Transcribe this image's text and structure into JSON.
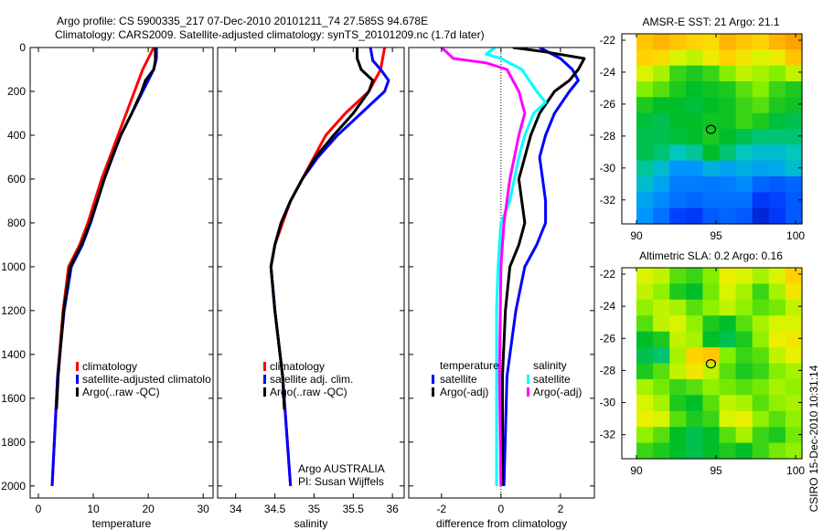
{
  "title": {
    "line1": "Argo profile: CS 5900335_217 07-Dec-2010 20101211_74 27.585S 94.678E",
    "line2": "Climatology: CARS2009. Satellite-adjusted climatology: synTS_20101209.nc (1.7d later)"
  },
  "footer": "CSIRO 15-Dec-2010 10:31:14",
  "colors": {
    "red": "#ff0000",
    "blue": "#0000ff",
    "black": "#000000",
    "cyan": "#00ffff",
    "magenta": "#ff00ff"
  },
  "chart_data": [
    {
      "type": "line",
      "xlabel": "temperature",
      "ylabel": "",
      "xlim": [
        -1.5,
        31.8
      ],
      "ylim": [
        0,
        2055
      ],
      "y_reversed": true,
      "xticks": [
        0,
        10,
        20,
        30
      ],
      "yticks": [
        0,
        200,
        400,
        600,
        800,
        1000,
        1200,
        1400,
        1600,
        1800,
        2000
      ],
      "legend": [
        "climatology",
        "satellite-adjusted climatolo",
        "Argo(..raw -QC)"
      ],
      "series": [
        {
          "name": "climatology",
          "color": "#ff0000",
          "depth": [
            0,
            50,
            100,
            200,
            300,
            400,
            500,
            600,
            800,
            900,
            1000,
            1200,
            1500,
            2000
          ],
          "values": [
            21,
            20,
            19,
            17.5,
            16,
            14.5,
            13,
            11.5,
            9,
            7.5,
            5.5,
            4.5,
            3.5,
            2.5
          ]
        },
        {
          "name": "satellite-adjusted climatology",
          "color": "#0000ff",
          "depth": [
            0,
            50,
            100,
            200,
            300,
            400,
            500,
            600,
            800,
            900,
            1000,
            1200,
            1500,
            2000
          ],
          "values": [
            21.5,
            21.5,
            21,
            19,
            17,
            15,
            13.5,
            12,
            9.5,
            8,
            6,
            4.7,
            3.5,
            2.5
          ]
        },
        {
          "name": "Argo(..raw -QC)",
          "color": "#000000",
          "depth": [
            0,
            60,
            100,
            150,
            200,
            300,
            400,
            500,
            600,
            800,
            900,
            1000,
            1200,
            1500,
            1650
          ],
          "values": [
            21.3,
            21.3,
            21,
            19.5,
            18.8,
            17,
            15,
            13.4,
            12,
            9.4,
            7.8,
            5.8,
            4.6,
            3.6,
            3.3
          ]
        }
      ]
    },
    {
      "type": "line",
      "xlabel": "salinity",
      "xlim": [
        33.77,
        36.15
      ],
      "ylim": [
        0,
        2055
      ],
      "y_reversed": true,
      "xticks": [
        34,
        34.5,
        35,
        35.5,
        36
      ],
      "legend": [
        "climatology",
        "satellite adj. clim.",
        "Argo(..raw -QC)"
      ],
      "annotations": [
        "Argo AUSTRALIA",
        "PI: Susan Wijffels"
      ],
      "series": [
        {
          "name": "climatology",
          "color": "#ff0000",
          "depth": [
            0,
            100,
            200,
            300,
            400,
            500,
            600,
            700,
            800,
            900,
            1000,
            1200,
            1500,
            2000
          ],
          "values": [
            35.9,
            35.85,
            35.7,
            35.4,
            35.15,
            35.0,
            34.85,
            34.7,
            34.6,
            34.5,
            34.45,
            34.5,
            34.6,
            34.7
          ]
        },
        {
          "name": "satellite adj. clim.",
          "color": "#0000ff",
          "depth": [
            0,
            60,
            100,
            150,
            200,
            300,
            400,
            500,
            600,
            700,
            800,
            900,
            1000,
            1200,
            1500,
            2000
          ],
          "values": [
            35.72,
            35.75,
            35.85,
            35.95,
            35.9,
            35.6,
            35.3,
            35.05,
            34.85,
            34.7,
            34.58,
            34.5,
            34.45,
            34.5,
            34.6,
            34.7
          ]
        },
        {
          "name": "Argo(..raw -QC)",
          "color": "#000000",
          "depth": [
            0,
            50,
            100,
            150,
            200,
            300,
            400,
            500,
            600,
            700,
            800,
            900,
            1000,
            1200,
            1500,
            1650
          ],
          "values": [
            35.55,
            35.55,
            35.6,
            35.75,
            35.7,
            35.5,
            35.25,
            35.02,
            34.85,
            34.7,
            34.58,
            34.5,
            34.45,
            34.5,
            34.6,
            34.62
          ]
        }
      ]
    },
    {
      "type": "line",
      "xlabel": "difference from climatology",
      "xlim": [
        -3.1,
        3.14
      ],
      "ylim": [
        0,
        2055
      ],
      "y_reversed": true,
      "xticks": [
        -2,
        0,
        2
      ],
      "zero_line": true,
      "legend_groups": [
        {
          "title": "temperature",
          "entries": [
            "satellite",
            "Argo(-adj)"
          ]
        },
        {
          "title": "salinity",
          "entries": [
            "satellite",
            "Argo(-adj)"
          ]
        }
      ],
      "series": [
        {
          "name": "temperature satellite",
          "color": "#0000ff",
          "depth": [
            0,
            50,
            100,
            150,
            200,
            300,
            400,
            500,
            600,
            700,
            800,
            900,
            1000,
            1200,
            1500,
            2000
          ],
          "values": [
            1.3,
            2.0,
            2.4,
            2.6,
            2.3,
            1.8,
            1.5,
            1.3,
            1.4,
            1.5,
            1.5,
            1.2,
            0.8,
            0.5,
            0.2,
            0.1
          ]
        },
        {
          "name": "temperature Argo(-adj)",
          "color": "#000000",
          "depth": [
            0,
            20,
            50,
            100,
            150,
            200,
            300,
            400,
            500,
            600,
            700,
            800,
            900,
            1000,
            1200,
            1500,
            2000
          ],
          "values": [
            0.4,
            1.5,
            2.8,
            2.6,
            2.3,
            1.8,
            1.3,
            1.0,
            0.8,
            0.6,
            0.7,
            0.8,
            0.6,
            0.3,
            0.15,
            0.05,
            0.05
          ]
        },
        {
          "name": "salinity satellite",
          "color": "#00ffff",
          "depth": [
            0,
            30,
            50,
            100,
            200,
            250,
            300,
            400,
            500,
            700,
            800,
            1000,
            1200,
            2000
          ],
          "values": [
            -0.2,
            -0.5,
            0,
            0.7,
            1.2,
            1.5,
            1.1,
            0.8,
            0.6,
            0.3,
            0.0,
            -0.1,
            -0.15,
            -0.15
          ]
        },
        {
          "name": "salinity Argo(-adj)",
          "color": "#ff00ff",
          "depth": [
            0,
            50,
            70,
            100,
            200,
            300,
            400,
            600,
            800,
            1000,
            1500,
            2000
          ],
          "values": [
            -2,
            -1.6,
            -0.5,
            0.2,
            0.6,
            0.8,
            0.6,
            0.3,
            0.1,
            0.0,
            -0.05,
            0.0
          ]
        }
      ]
    },
    {
      "type": "heatmap",
      "title": "AMSR-E SST: 21 Argo: 21.1",
      "xlim": [
        90,
        100.4
      ],
      "ylim": [
        -33.5,
        -21.6
      ],
      "xticks": [
        90,
        95,
        100
      ],
      "yticks": [
        -22,
        -24,
        -26,
        -28,
        -30,
        -32
      ],
      "marker": {
        "lon": 94.678,
        "lat": -27.585
      },
      "grid": [
        [
          0.72,
          0.75,
          0.72,
          0.7,
          0.68,
          0.75,
          0.72,
          0.7,
          0.75,
          0.78
        ],
        [
          0.7,
          0.68,
          0.62,
          0.6,
          0.65,
          0.7,
          0.66,
          0.62,
          0.65,
          0.72
        ],
        [
          0.62,
          0.58,
          0.5,
          0.48,
          0.5,
          0.55,
          0.6,
          0.58,
          0.55,
          0.6
        ],
        [
          0.55,
          0.52,
          0.48,
          0.46,
          0.47,
          0.48,
          0.52,
          0.55,
          0.5,
          0.48
        ],
        [
          0.48,
          0.46,
          0.46,
          0.45,
          0.46,
          0.47,
          0.5,
          0.52,
          0.48,
          0.47
        ],
        [
          0.45,
          0.44,
          0.46,
          0.46,
          0.47,
          0.47,
          0.5,
          0.48,
          0.45,
          0.44
        ],
        [
          0.44,
          0.44,
          0.45,
          0.46,
          0.48,
          0.46,
          0.44,
          0.42,
          0.42,
          0.42
        ],
        [
          0.44,
          0.42,
          0.38,
          0.4,
          0.46,
          0.42,
          0.38,
          0.36,
          0.36,
          0.38
        ],
        [
          0.4,
          0.36,
          0.3,
          0.3,
          0.34,
          0.32,
          0.34,
          0.32,
          0.33,
          0.36
        ],
        [
          0.36,
          0.32,
          0.26,
          0.26,
          0.25,
          0.26,
          0.28,
          0.22,
          0.2,
          0.22
        ],
        [
          0.32,
          0.28,
          0.24,
          0.22,
          0.24,
          0.24,
          0.24,
          0.14,
          0.16,
          0.2
        ],
        [
          0.3,
          0.24,
          0.16,
          0.14,
          0.2,
          0.22,
          0.2,
          0.1,
          0.14,
          0.2
        ]
      ]
    },
    {
      "type": "heatmap",
      "title": "Altimetric SLA: 0.2 Argo: 0.16",
      "xlim": [
        90,
        100.4
      ],
      "ylim": [
        -33.5,
        -21.6
      ],
      "xticks": [
        90,
        95,
        100
      ],
      "yticks": [
        -22,
        -24,
        -26,
        -28,
        -30,
        -32
      ],
      "marker": {
        "lon": 94.678,
        "lat": -27.585
      },
      "grid": [
        [
          0.62,
          0.6,
          0.52,
          0.5,
          0.55,
          0.64,
          0.62,
          0.58,
          0.62,
          0.7
        ],
        [
          0.6,
          0.56,
          0.48,
          0.46,
          0.54,
          0.62,
          0.58,
          0.5,
          0.58,
          0.66
        ],
        [
          0.56,
          0.6,
          0.58,
          0.52,
          0.56,
          0.6,
          0.56,
          0.52,
          0.54,
          0.6
        ],
        [
          0.52,
          0.6,
          0.62,
          0.56,
          0.48,
          0.46,
          0.52,
          0.58,
          0.62,
          0.62
        ],
        [
          0.46,
          0.48,
          0.6,
          0.58,
          0.46,
          0.44,
          0.48,
          0.56,
          0.64,
          0.66
        ],
        [
          0.44,
          0.42,
          0.58,
          0.7,
          0.72,
          0.55,
          0.5,
          0.52,
          0.6,
          0.64
        ],
        [
          0.48,
          0.52,
          0.6,
          0.66,
          0.6,
          0.52,
          0.48,
          0.5,
          0.55,
          0.58
        ],
        [
          0.58,
          0.54,
          0.5,
          0.52,
          0.56,
          0.54,
          0.52,
          0.54,
          0.58,
          0.56
        ],
        [
          0.62,
          0.58,
          0.48,
          0.46,
          0.52,
          0.6,
          0.58,
          0.52,
          0.56,
          0.58
        ],
        [
          0.64,
          0.62,
          0.52,
          0.48,
          0.5,
          0.62,
          0.64,
          0.56,
          0.52,
          0.56
        ],
        [
          0.56,
          0.52,
          0.46,
          0.44,
          0.46,
          0.52,
          0.58,
          0.5,
          0.48,
          0.54
        ],
        [
          0.5,
          0.48,
          0.46,
          0.44,
          0.46,
          0.48,
          0.46,
          0.5,
          0.54,
          0.56
        ]
      ]
    }
  ]
}
